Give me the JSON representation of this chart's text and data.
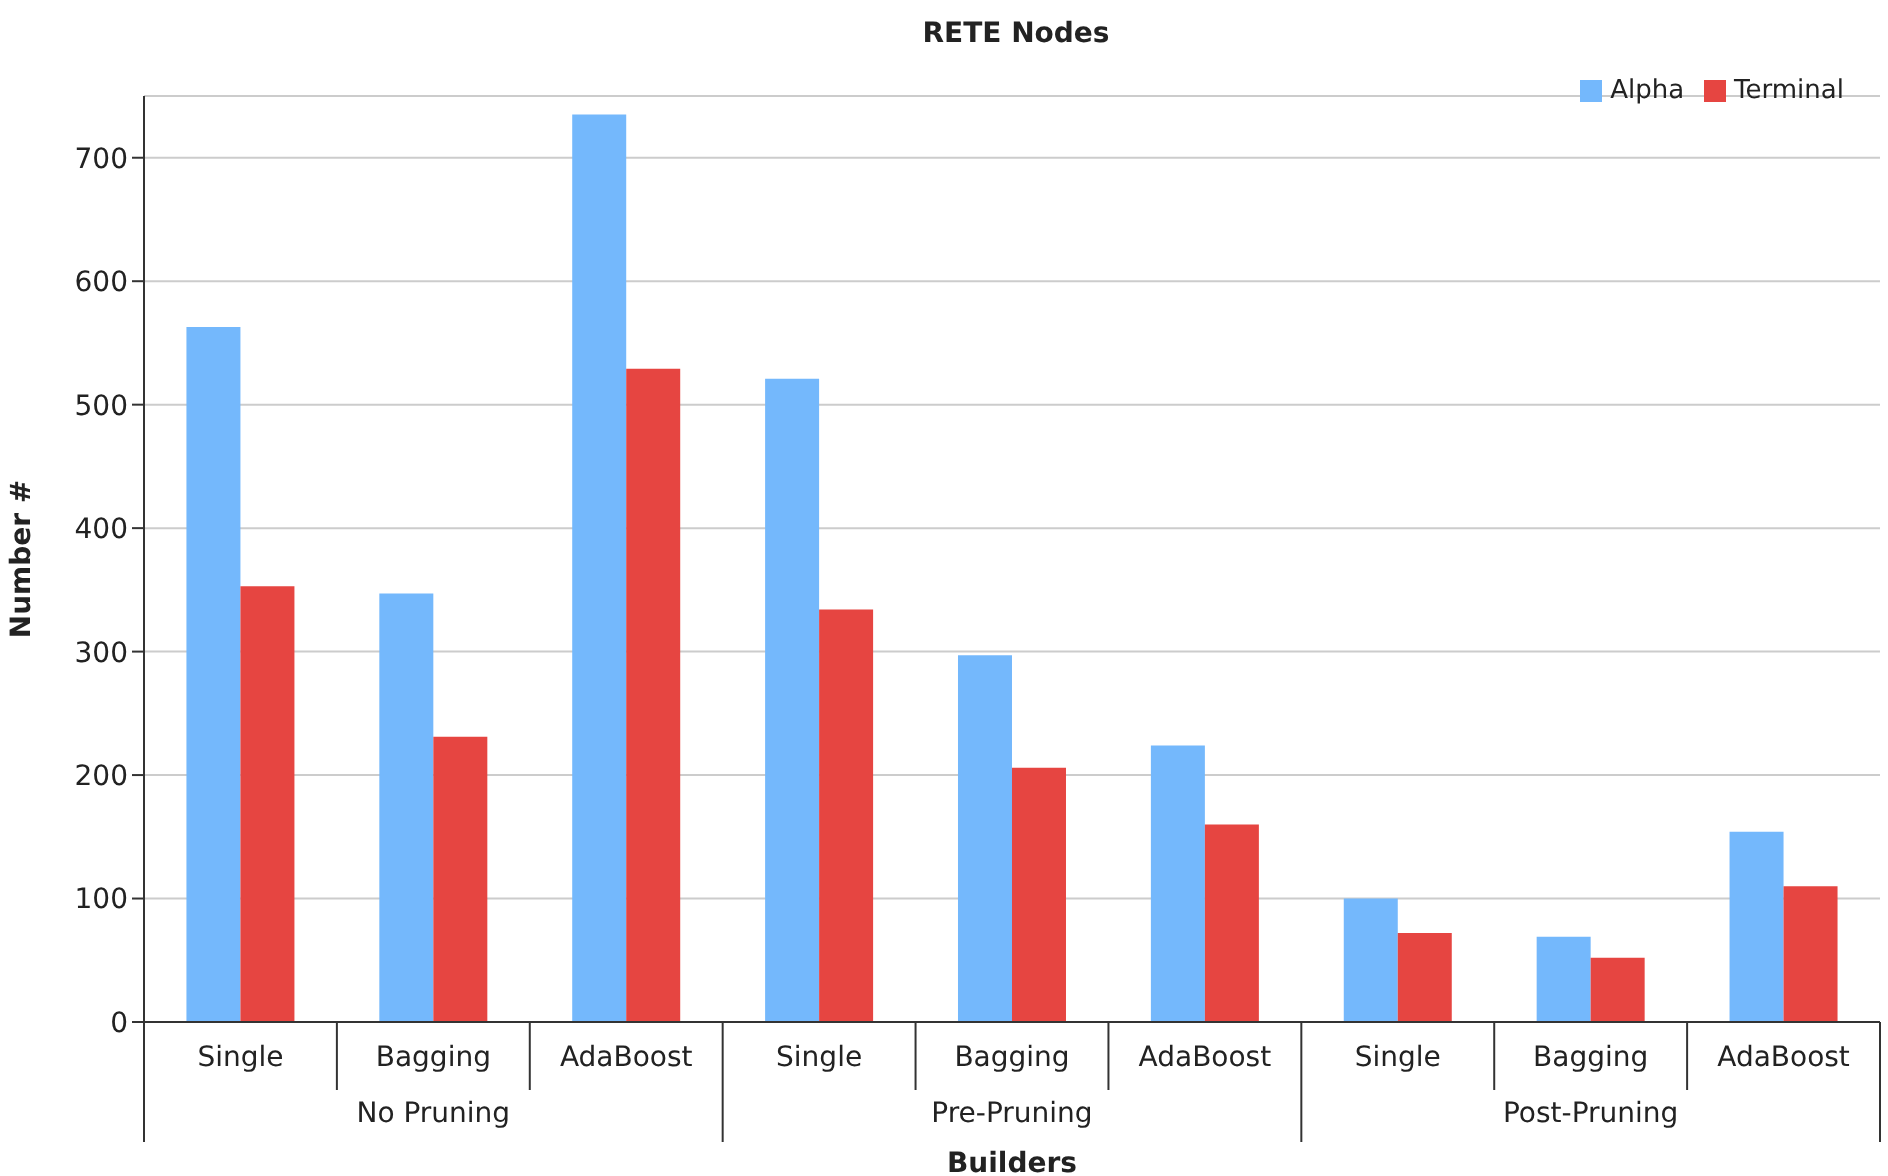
{
  "chart_data": {
    "type": "bar",
    "title": "RETE Nodes",
    "xlabel": "Builders",
    "ylabel": "Number #",
    "categories": [
      "Single",
      "Bagging",
      "AdaBoost",
      "Single",
      "Bagging",
      "AdaBoost",
      "Single",
      "Bagging",
      "AdaBoost"
    ],
    "annotations": [
      "No Pruning",
      "Pre-Pruning",
      "Post-Pruning"
    ],
    "series": [
      {
        "name": "Alpha",
        "color": "#74b8fc",
        "values": [
          563,
          347,
          735,
          521,
          297,
          224,
          100,
          69,
          154
        ]
      },
      {
        "name": "Terminal",
        "color": "#e64541",
        "values": [
          353,
          231,
          529,
          334,
          206,
          160,
          72,
          52,
          110
        ]
      }
    ],
    "ylim": [
      0,
      750
    ],
    "yticks": [
      0,
      100,
      200,
      300,
      400,
      500,
      600,
      700
    ],
    "grid": "y",
    "legend": "top right"
  }
}
